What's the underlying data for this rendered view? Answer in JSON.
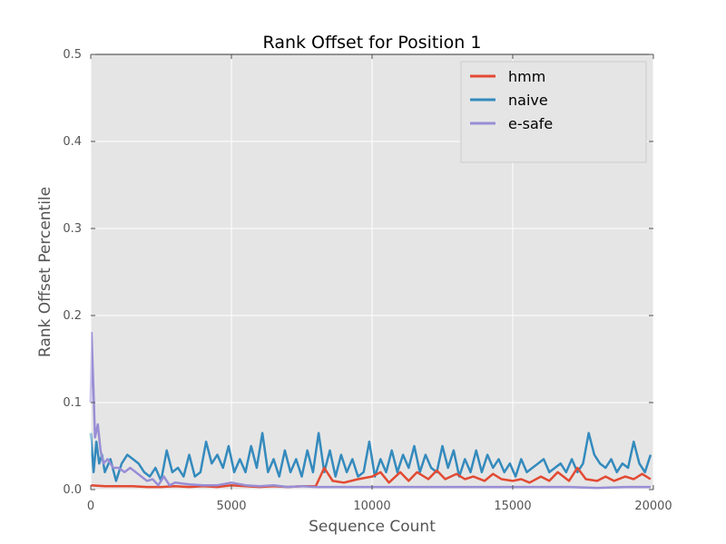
{
  "chart_data": {
    "type": "line",
    "title": "Rank Offset for Position 1",
    "xlabel": "Sequence Count",
    "ylabel": "Rank Offset Percentile",
    "xlim": [
      0,
      20000
    ],
    "ylim": [
      0,
      0.5
    ],
    "xticks": [
      0,
      5000,
      10000,
      15000,
      20000
    ],
    "xtick_labels": [
      "0",
      "5000",
      "10000",
      "15000",
      "20000"
    ],
    "yticks": [
      0.0,
      0.1,
      0.2,
      0.3,
      0.4,
      0.5
    ],
    "ytick_labels": [
      "0.0",
      "0.1",
      "0.2",
      "0.3",
      "0.4",
      "0.5"
    ],
    "grid": true,
    "background": "#e5e5e5",
    "legend_position": "top-right",
    "series": [
      {
        "name": "hmm",
        "color": "#e24a33",
        "x": [
          0,
          500,
          1000,
          1500,
          2000,
          2500,
          3000,
          3500,
          4000,
          4500,
          5000,
          5500,
          6000,
          6500,
          7000,
          7500,
          8000,
          8300,
          8600,
          9000,
          9500,
          10000,
          10300,
          10600,
          11000,
          11300,
          11600,
          12000,
          12300,
          12600,
          13000,
          13300,
          13600,
          14000,
          14300,
          14600,
          15000,
          15300,
          15600,
          16000,
          16300,
          16600,
          17000,
          17300,
          17600,
          18000,
          18300,
          18600,
          19000,
          19300,
          19600,
          19900
        ],
        "y": [
          0.005,
          0.004,
          0.004,
          0.004,
          0.003,
          0.003,
          0.004,
          0.003,
          0.004,
          0.003,
          0.005,
          0.004,
          0.003,
          0.004,
          0.003,
          0.004,
          0.004,
          0.025,
          0.01,
          0.008,
          0.012,
          0.015,
          0.02,
          0.008,
          0.02,
          0.01,
          0.02,
          0.012,
          0.022,
          0.012,
          0.018,
          0.012,
          0.015,
          0.01,
          0.018,
          0.012,
          0.01,
          0.012,
          0.008,
          0.015,
          0.01,
          0.02,
          0.01,
          0.025,
          0.012,
          0.01,
          0.015,
          0.01,
          0.015,
          0.012,
          0.018,
          0.012
        ]
      },
      {
        "name": "naive",
        "color": "#348abd",
        "x": [
          0,
          100,
          200,
          300,
          400,
          500,
          700,
          900,
          1100,
          1300,
          1500,
          1700,
          1900,
          2100,
          2300,
          2500,
          2700,
          2900,
          3100,
          3300,
          3500,
          3700,
          3900,
          4100,
          4300,
          4500,
          4700,
          4900,
          5100,
          5300,
          5500,
          5700,
          5900,
          6100,
          6300,
          6500,
          6700,
          6900,
          7100,
          7300,
          7500,
          7700,
          7900,
          8100,
          8300,
          8500,
          8700,
          8900,
          9100,
          9300,
          9500,
          9700,
          9900,
          10100,
          10300,
          10500,
          10700,
          10900,
          11100,
          11300,
          11500,
          11700,
          11900,
          12100,
          12300,
          12500,
          12700,
          12900,
          13100,
          13300,
          13500,
          13700,
          13900,
          14100,
          14300,
          14500,
          14700,
          14900,
          15100,
          15300,
          15500,
          15700,
          15900,
          16100,
          16300,
          16500,
          16700,
          16900,
          17100,
          17300,
          17500,
          17700,
          17900,
          18100,
          18300,
          18500,
          18700,
          18900,
          19100,
          19300,
          19500,
          19700,
          19900
        ],
        "y": [
          0.065,
          0.02,
          0.055,
          0.03,
          0.04,
          0.02,
          0.035,
          0.01,
          0.03,
          0.04,
          0.035,
          0.03,
          0.02,
          0.015,
          0.025,
          0.01,
          0.045,
          0.02,
          0.025,
          0.015,
          0.04,
          0.015,
          0.02,
          0.055,
          0.03,
          0.04,
          0.025,
          0.05,
          0.02,
          0.035,
          0.02,
          0.05,
          0.025,
          0.065,
          0.02,
          0.035,
          0.015,
          0.045,
          0.02,
          0.035,
          0.015,
          0.045,
          0.02,
          0.065,
          0.02,
          0.045,
          0.015,
          0.04,
          0.02,
          0.035,
          0.015,
          0.02,
          0.055,
          0.015,
          0.035,
          0.02,
          0.045,
          0.02,
          0.04,
          0.025,
          0.05,
          0.02,
          0.04,
          0.025,
          0.02,
          0.05,
          0.025,
          0.045,
          0.015,
          0.035,
          0.02,
          0.045,
          0.02,
          0.04,
          0.025,
          0.035,
          0.02,
          0.03,
          0.015,
          0.035,
          0.02,
          0.025,
          0.03,
          0.035,
          0.02,
          0.025,
          0.03,
          0.02,
          0.035,
          0.02,
          0.03,
          0.065,
          0.04,
          0.03,
          0.025,
          0.035,
          0.02,
          0.03,
          0.025,
          0.055,
          0.03,
          0.02,
          0.04
        ]
      },
      {
        "name": "e-safe",
        "color": "#988ed5",
        "x": [
          0,
          30,
          80,
          150,
          250,
          350,
          450,
          600,
          800,
          1000,
          1200,
          1400,
          1600,
          1800,
          2000,
          2200,
          2400,
          2600,
          2800,
          3000,
          3500,
          4000,
          4500,
          5000,
          5500,
          6000,
          6500,
          7000,
          7500,
          8000,
          8500,
          9000,
          10000,
          11000,
          12000,
          13000,
          14000,
          15000,
          16000,
          17000,
          18000,
          19000,
          19900
        ],
        "y": [
          0.1,
          0.18,
          0.13,
          0.06,
          0.075,
          0.045,
          0.03,
          0.035,
          0.025,
          0.025,
          0.02,
          0.025,
          0.02,
          0.015,
          0.01,
          0.012,
          0.005,
          0.015,
          0.005,
          0.008,
          0.006,
          0.005,
          0.005,
          0.008,
          0.005,
          0.004,
          0.005,
          0.003,
          0.004,
          0.003,
          0.003,
          0.003,
          0.003,
          0.003,
          0.003,
          0.003,
          0.003,
          0.003,
          0.003,
          0.003,
          0.002,
          0.003,
          0.003
        ]
      }
    ]
  }
}
